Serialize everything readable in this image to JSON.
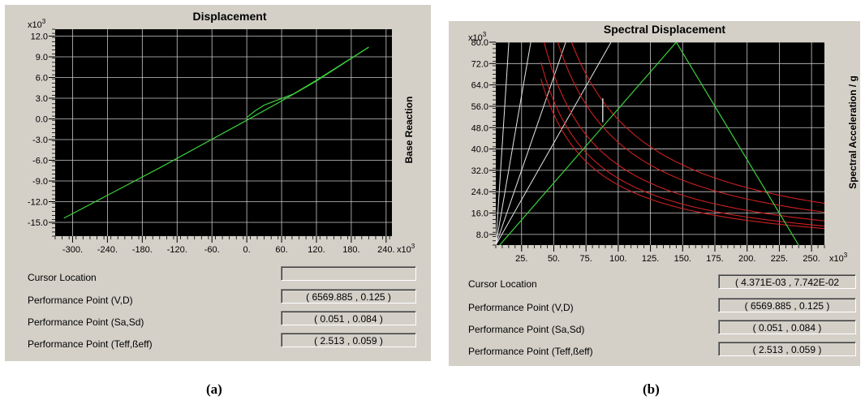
{
  "panels": [
    {
      "id": "a",
      "caption": "(a)",
      "cursor": {
        "label": "Cursor Location",
        "value": ""
      },
      "perf_vd": {
        "label": "Performance Point (V,D)",
        "value": "( 6569.885 , 0.125 )"
      },
      "perf_sasd": {
        "label": "Performance Point (Sa,Sd)",
        "value": "( 0.051 , 0.084 )"
      },
      "perf_teff": {
        "label": "Performance Point (Teff,ßeff)",
        "value": "( 2.513 , 0.059 )"
      }
    },
    {
      "id": "b",
      "caption": "(b)",
      "cursor": {
        "label": "Cursor Location",
        "value": "( 4.371E-03 , 7.742E-02"
      },
      "perf_vd": {
        "label": "Performance Point (V,D)",
        "value": "( 6569.885 , 0.125 )"
      },
      "perf_sasd": {
        "label": "Performance Point (Sa,Sd)",
        "value": "( 0.051 , 0.084 )"
      },
      "perf_teff": {
        "label": "Performance Point (Teff,ßeff)",
        "value": "( 2.513 , 0.059 )"
      }
    }
  ],
  "chart_data": [
    {
      "type": "line",
      "title": "Displacement",
      "xlabel": "",
      "ylabel": "Base Reaction",
      "x_multiplier": "x10",
      "x_multiplier_exp": "3",
      "y_multiplier": "x10",
      "y_multiplier_exp": "3",
      "xlim": [
        -330,
        250
      ],
      "ylim": [
        -17,
        13
      ],
      "x_ticks": [
        -300,
        -240,
        -180,
        -120,
        -60,
        0,
        60,
        120,
        180,
        240
      ],
      "x_tick_labels": [
        "-300.",
        "-240.",
        "-180.",
        "-120.",
        "-60.",
        "0.",
        "60.",
        "120.",
        "180.",
        "240."
      ],
      "y_ticks": [
        -15,
        -12,
        -9,
        -6,
        -3,
        0,
        3,
        6,
        9,
        12
      ],
      "y_tick_labels": [
        "-15.0",
        "-12.0",
        "-9.0",
        "-6.0",
        "-3.0",
        "0.0",
        "3.0",
        "6.0",
        "9.0",
        "12.0"
      ],
      "grid": true,
      "background": "#000000",
      "series": [
        {
          "color": "#3cd03c",
          "points": [
            [
              -315,
              -14.4
            ],
            [
              -150,
              -7.1
            ],
            [
              0,
              -0.2
            ],
            [
              60,
              2.6
            ],
            [
              120,
              5.5
            ],
            [
              210,
              10.4
            ]
          ]
        },
        {
          "color": "#3cd03c",
          "points": [
            [
              0,
              0.2
            ],
            [
              15,
              1.2
            ],
            [
              30,
              2.0
            ],
            [
              80,
              3.6
            ],
            [
              120,
              5.6
            ],
            [
              210,
              10.4
            ]
          ]
        }
      ]
    },
    {
      "type": "line",
      "title": "Spectral Displacement",
      "xlabel": "",
      "ylabel": "Spectral Acceleration / g",
      "x_multiplier": "x10",
      "x_multiplier_exp": "3",
      "y_multiplier": "x10",
      "y_multiplier_exp": "3",
      "xlim": [
        5,
        260
      ],
      "ylim": [
        4,
        80
      ],
      "x_ticks": [
        25,
        50,
        75,
        100,
        125,
        150,
        175,
        200,
        225,
        250
      ],
      "x_tick_labels": [
        "25.",
        "50.",
        "75.",
        "100.",
        "125.",
        "150.",
        "175.",
        "200.",
        "225.",
        "250."
      ],
      "y_ticks": [
        8,
        16,
        24,
        32,
        40,
        48,
        56,
        64,
        72,
        80
      ],
      "y_tick_labels": [
        "8.0",
        "16.0",
        "24.0",
        "32.0",
        "40.0",
        "48.0",
        "56.0",
        "64.0",
        "72.0",
        "80.0"
      ],
      "grid": true,
      "background": "#000000",
      "demand_curves_color": "#cc2020",
      "demand_curves": [
        {
          "k": 5100
        },
        {
          "k": 4250
        },
        {
          "k": 3400
        },
        {
          "k": 2900
        },
        {
          "k": 2650
        }
      ],
      "period_lines_color": "#e6e6e6",
      "period_lines": [
        {
          "slope": 7.5
        },
        {
          "slope": 2.8
        },
        {
          "slope": 1.4
        },
        {
          "slope": 0.85
        }
      ],
      "capacity_color": "#3cd03c",
      "capacity": [
        [
          8,
          4
        ],
        [
          145,
          80
        ],
        [
          240,
          4
        ]
      ],
      "marker": {
        "x": 88,
        "y": [
          50,
          59
        ]
      }
    }
  ]
}
